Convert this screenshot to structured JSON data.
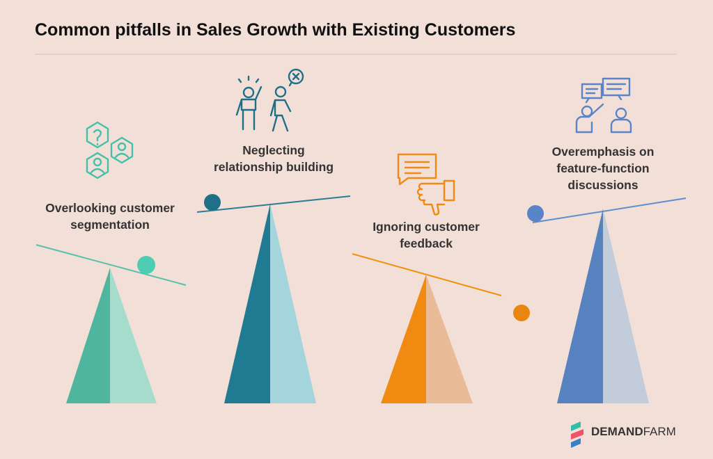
{
  "header": {
    "title": "Common pitfalls in Sales Growth with Existing Customers"
  },
  "items": [
    {
      "label": [
        "Overlooking customer",
        "segmentation"
      ]
    },
    {
      "label": [
        "Neglecting",
        "relationship building"
      ]
    },
    {
      "label": [
        "Ignoring customer",
        "feedback"
      ]
    },
    {
      "label": [
        "Overemphasis on",
        "feature-function",
        "discussions"
      ]
    }
  ],
  "brand": {
    "bold": "DEMAND",
    "light": "FARM"
  }
}
